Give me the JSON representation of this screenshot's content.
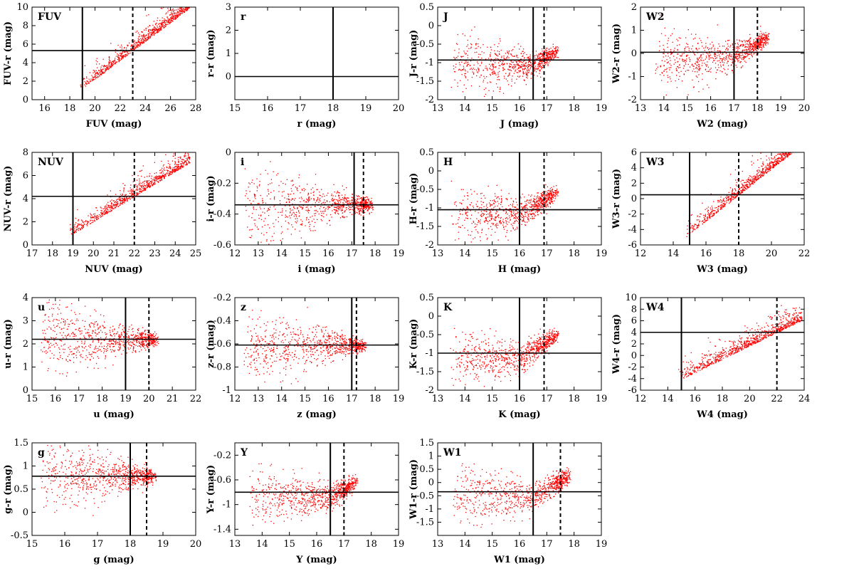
{
  "figure": {
    "point_color": "#ff0000",
    "line_color": "#000000"
  },
  "chart_data": [
    {
      "type": "scatter",
      "band": "FUV",
      "panel_label": "FUV",
      "xlabel": "FUV (mag)",
      "ylabel": "FUV-r (mag)",
      "xlim": [
        15,
        28
      ],
      "ylim": [
        0,
        10
      ],
      "xticks": [
        16,
        18,
        20,
        22,
        24,
        26,
        28
      ],
      "yticks": [
        0,
        2,
        4,
        6,
        8,
        10
      ],
      "vline_solid": 19,
      "vline_dashed": 23,
      "hline": 5.3,
      "trend": "linear-wedge"
    },
    {
      "type": "scatter",
      "band": "r",
      "panel_label": "r",
      "xlabel": "r (mag)",
      "ylabel": "r-r (mag)",
      "xlim": [
        15,
        20
      ],
      "ylim": [
        -1,
        3
      ],
      "xticks": [
        15,
        16,
        17,
        18,
        19,
        20
      ],
      "yticks": [
        0,
        1,
        2,
        3
      ],
      "vline_solid": 18,
      "vline_dashed": null,
      "hline": 0,
      "trend": "none"
    },
    {
      "type": "scatter",
      "band": "J",
      "panel_label": "J",
      "xlabel": "J (mag)",
      "ylabel": "J-r (mag)",
      "xlim": [
        13,
        19
      ],
      "ylim": [
        -2,
        0.5
      ],
      "xticks": [
        13,
        14,
        15,
        16,
        17,
        18,
        19
      ],
      "yticks": [
        -2,
        -1.5,
        -1,
        -0.5,
        0,
        0.5
      ],
      "vline_solid": 16.5,
      "vline_dashed": 16.9,
      "hline": -0.93,
      "trend": "near-wedge"
    },
    {
      "type": "scatter",
      "band": "W2",
      "panel_label": "W2",
      "xlabel": "W2 (mag)",
      "ylabel": "W2-r (mag)",
      "xlim": [
        13,
        20
      ],
      "ylim": [
        -2,
        2
      ],
      "xticks": [
        13,
        14,
        15,
        16,
        17,
        18,
        19,
        20
      ],
      "yticks": [
        -2,
        -1,
        0,
        1,
        2
      ],
      "vline_solid": 17,
      "vline_dashed": 18,
      "hline": 0.05,
      "trend": "near-wedge"
    },
    {
      "type": "scatter",
      "band": "NUV",
      "panel_label": "NUV",
      "xlabel": "NUV (mag)",
      "ylabel": "NUV-r (mag)",
      "xlim": [
        17,
        25
      ],
      "ylim": [
        0,
        8
      ],
      "xticks": [
        17,
        18,
        19,
        20,
        21,
        22,
        23,
        24,
        25
      ],
      "yticks": [
        0,
        2,
        4,
        6,
        8
      ],
      "vline_solid": 19,
      "vline_dashed": 22,
      "hline": 4.2,
      "trend": "linear-wedge"
    },
    {
      "type": "scatter",
      "band": "i",
      "panel_label": "i",
      "xlabel": "i (mag)",
      "ylabel": "i-r (mag)",
      "xlim": [
        12,
        19
      ],
      "ylim": [
        -0.6,
        0
      ],
      "xticks": [
        12,
        13,
        14,
        15,
        16,
        17,
        18,
        19
      ],
      "yticks": [
        -0.6,
        -0.4,
        -0.2,
        0
      ],
      "vline_solid": 17.1,
      "vline_dashed": 17.5,
      "hline": -0.34,
      "trend": "optical-fan"
    },
    {
      "type": "scatter",
      "band": "H",
      "panel_label": "H",
      "xlabel": "H (mag)",
      "ylabel": "H-r (mag)",
      "xlim": [
        13,
        19
      ],
      "ylim": [
        -2,
        0.5
      ],
      "xticks": [
        13,
        14,
        15,
        16,
        17,
        18,
        19
      ],
      "yticks": [
        -2,
        -1.5,
        -1,
        -0.5,
        0,
        0.5
      ],
      "vline_solid": 16,
      "vline_dashed": 16.9,
      "hline": -1.05,
      "trend": "near-wedge"
    },
    {
      "type": "scatter",
      "band": "W3",
      "panel_label": "W3",
      "xlabel": "W3 (mag)",
      "ylabel": "W3-r (mag)",
      "xlim": [
        12,
        22
      ],
      "ylim": [
        -6,
        6
      ],
      "xticks": [
        12,
        14,
        16,
        18,
        20,
        22
      ],
      "yticks": [
        -6,
        -4,
        -2,
        0,
        2,
        4,
        6
      ],
      "vline_solid": 15,
      "vline_dashed": 18,
      "hline": 0.5,
      "trend": "linear-wedge"
    },
    {
      "type": "scatter",
      "band": "u",
      "panel_label": "u",
      "xlabel": "u (mag)",
      "ylabel": "u-r (mag)",
      "xlim": [
        15,
        22
      ],
      "ylim": [
        0,
        4
      ],
      "xticks": [
        15,
        16,
        17,
        18,
        19,
        20,
        21,
        22
      ],
      "yticks": [
        0,
        1,
        2,
        3,
        4
      ],
      "vline_solid": 19,
      "vline_dashed": 20,
      "hline": 2.2,
      "trend": "optical-fan"
    },
    {
      "type": "scatter",
      "band": "z",
      "panel_label": "z",
      "xlabel": "z (mag)",
      "ylabel": "z-r (mag)",
      "xlim": [
        12,
        19
      ],
      "ylim": [
        -1,
        -0.2
      ],
      "xticks": [
        12,
        13,
        14,
        15,
        16,
        17,
        18,
        19
      ],
      "yticks": [
        -1,
        -0.8,
        -0.6,
        -0.4,
        -0.2
      ],
      "vline_solid": 17,
      "vline_dashed": 17.2,
      "hline": -0.61,
      "trend": "optical-fan"
    },
    {
      "type": "scatter",
      "band": "K",
      "panel_label": "K",
      "xlabel": "K (mag)",
      "ylabel": "K-r (mag)",
      "xlim": [
        13,
        19
      ],
      "ylim": [
        -2,
        0.5
      ],
      "xticks": [
        13,
        14,
        15,
        16,
        17,
        18,
        19
      ],
      "yticks": [
        -2,
        -1.5,
        -1,
        -0.5,
        0,
        0.5
      ],
      "vline_solid": 16,
      "vline_dashed": 16.9,
      "hline": -1.0,
      "trend": "near-wedge"
    },
    {
      "type": "scatter",
      "band": "W4",
      "panel_label": "W4",
      "xlabel": "W4 (mag)",
      "ylabel": "W4-r (mag)",
      "xlim": [
        12,
        24
      ],
      "ylim": [
        -6,
        10
      ],
      "xticks": [
        12,
        14,
        16,
        18,
        20,
        22,
        24
      ],
      "yticks": [
        -6,
        -4,
        -2,
        0,
        2,
        4,
        6,
        8,
        10
      ],
      "vline_solid": 15,
      "vline_dashed": 22,
      "hline": 4,
      "trend": "linear-wedge"
    },
    {
      "type": "scatter",
      "band": "g",
      "panel_label": "g",
      "xlabel": "g (mag)",
      "ylabel": "g-r (mag)",
      "xlim": [
        15,
        20
      ],
      "ylim": [
        -0.5,
        1.5
      ],
      "xticks": [
        15,
        16,
        17,
        18,
        19,
        20
      ],
      "yticks": [
        -0.5,
        0,
        0.5,
        1,
        1.5
      ],
      "vline_solid": 18,
      "vline_dashed": 18.5,
      "hline": 0.78,
      "trend": "optical-fan"
    },
    {
      "type": "scatter",
      "band": "Y",
      "panel_label": "Y",
      "xlabel": "Y (mag)",
      "ylabel": "Y-r (mag)",
      "xlim": [
        13,
        19
      ],
      "ylim": [
        -1.5,
        0
      ],
      "xticks": [
        13,
        14,
        15,
        16,
        17,
        18,
        19
      ],
      "yticks": [
        -1.4,
        -1,
        -0.6,
        -0.2
      ],
      "vline_solid": 16.5,
      "vline_dashed": 17,
      "hline": -0.8,
      "trend": "near-wedge"
    },
    {
      "type": "scatter",
      "band": "W1",
      "panel_label": "W1",
      "xlabel": "W1 (mag)",
      "ylabel": "W1-r (mag)",
      "xlim": [
        13,
        19
      ],
      "ylim": [
        -2,
        1.5
      ],
      "xticks": [
        13,
        14,
        15,
        16,
        17,
        18,
        19
      ],
      "yticks": [
        -1.5,
        -1,
        -0.5,
        0,
        0.5,
        1,
        1.5
      ],
      "vline_solid": 16.5,
      "vline_dashed": 17.5,
      "hline": -0.35,
      "trend": "near-wedge"
    }
  ]
}
